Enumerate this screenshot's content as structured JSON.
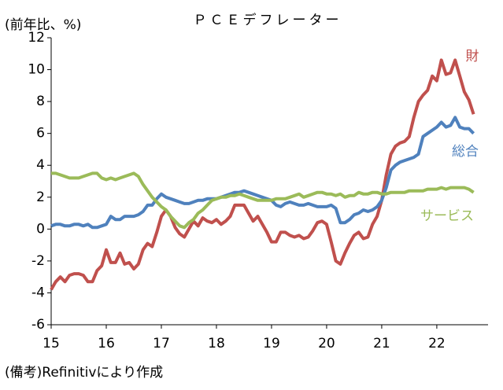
{
  "chart_data": {
    "type": "line",
    "title": "ＰＣＥデフレーター",
    "y_label": "(前年比、%)",
    "note": "(備考)Refinitivにより作成",
    "x": [
      15,
      15.083,
      15.167,
      15.25,
      15.333,
      15.417,
      15.5,
      15.583,
      15.667,
      15.75,
      15.833,
      15.917,
      16,
      16.083,
      16.167,
      16.25,
      16.333,
      16.417,
      16.5,
      16.583,
      16.667,
      16.75,
      16.833,
      16.917,
      17,
      17.083,
      17.167,
      17.25,
      17.333,
      17.417,
      17.5,
      17.583,
      17.667,
      17.75,
      17.833,
      17.917,
      18,
      18.083,
      18.167,
      18.25,
      18.333,
      18.417,
      18.5,
      18.583,
      18.667,
      18.75,
      18.833,
      18.917,
      19,
      19.083,
      19.167,
      19.25,
      19.333,
      19.417,
      19.5,
      19.583,
      19.667,
      19.75,
      19.833,
      19.917,
      20,
      20.083,
      20.167,
      20.25,
      20.333,
      20.417,
      20.5,
      20.583,
      20.667,
      20.75,
      20.833,
      20.917,
      21,
      21.083,
      21.167,
      21.25,
      21.333,
      21.417,
      21.5,
      21.583,
      21.667,
      21.75,
      21.833,
      21.917,
      22,
      22.083,
      22.167,
      22.25,
      22.333,
      22.417,
      22.5,
      22.583,
      22.667
    ],
    "series": [
      {
        "name": "財",
        "color": "#c0504d",
        "values": [
          -3.8,
          -3.3,
          -3.0,
          -3.3,
          -2.9,
          -2.8,
          -2.8,
          -2.9,
          -3.3,
          -3.3,
          -2.6,
          -2.3,
          -1.3,
          -2.1,
          -2.1,
          -1.5,
          -2.2,
          -2.1,
          -2.5,
          -2.2,
          -1.3,
          -0.9,
          -1.1,
          -0.2,
          0.8,
          1.2,
          0.8,
          0.1,
          -0.3,
          -0.5,
          0.0,
          0.5,
          0.2,
          0.7,
          0.5,
          0.4,
          0.6,
          0.3,
          0.5,
          0.8,
          1.5,
          1.5,
          1.5,
          1.0,
          0.5,
          0.8,
          0.3,
          -0.2,
          -0.8,
          -0.8,
          -0.2,
          -0.2,
          -0.4,
          -0.5,
          -0.4,
          -0.6,
          -0.5,
          -0.1,
          0.4,
          0.5,
          0.3,
          -0.8,
          -2.0,
          -2.2,
          -1.5,
          -0.9,
          -0.4,
          -0.2,
          -0.6,
          -0.5,
          0.3,
          0.8,
          1.8,
          3.4,
          4.7,
          5.2,
          5.4,
          5.5,
          5.8,
          7.0,
          8.0,
          8.4,
          8.7,
          9.6,
          9.3,
          10.6,
          9.7,
          9.8,
          10.6,
          9.6,
          8.6,
          8.1,
          7.2
        ]
      },
      {
        "name": "総合",
        "color": "#4f81bd",
        "values": [
          0.2,
          0.3,
          0.3,
          0.2,
          0.2,
          0.3,
          0.3,
          0.2,
          0.3,
          0.1,
          0.1,
          0.2,
          0.3,
          0.8,
          0.6,
          0.6,
          0.8,
          0.8,
          0.8,
          0.9,
          1.1,
          1.5,
          1.5,
          1.9,
          2.2,
          2.0,
          1.9,
          1.8,
          1.7,
          1.6,
          1.6,
          1.7,
          1.8,
          1.8,
          1.9,
          1.9,
          1.9,
          2.0,
          2.1,
          2.2,
          2.3,
          2.3,
          2.4,
          2.3,
          2.2,
          2.1,
          2.0,
          1.9,
          1.8,
          1.5,
          1.4,
          1.6,
          1.7,
          1.6,
          1.5,
          1.5,
          1.6,
          1.5,
          1.4,
          1.4,
          1.4,
          1.5,
          1.3,
          0.4,
          0.4,
          0.6,
          0.9,
          1.0,
          1.2,
          1.1,
          1.2,
          1.4,
          1.8,
          2.6,
          3.7,
          4.0,
          4.2,
          4.3,
          4.4,
          4.5,
          4.7,
          5.8,
          6.0,
          6.2,
          6.4,
          6.7,
          6.4,
          6.5,
          7.0,
          6.4,
          6.3,
          6.3,
          6.0
        ]
      },
      {
        "name": "サービス",
        "color": "#9bbb59",
        "values": [
          3.5,
          3.5,
          3.4,
          3.3,
          3.2,
          3.2,
          3.2,
          3.3,
          3.4,
          3.5,
          3.5,
          3.2,
          3.1,
          3.2,
          3.1,
          3.2,
          3.3,
          3.4,
          3.5,
          3.3,
          2.8,
          2.4,
          2.0,
          1.7,
          1.4,
          1.2,
          0.8,
          0.5,
          0.2,
          0.1,
          0.4,
          0.6,
          1.0,
          1.2,
          1.5,
          1.8,
          1.9,
          2.0,
          2.0,
          2.1,
          2.1,
          2.2,
          2.1,
          2.0,
          1.9,
          1.8,
          1.8,
          1.8,
          1.8,
          1.9,
          1.9,
          1.9,
          2.0,
          2.1,
          2.2,
          2.0,
          2.1,
          2.2,
          2.3,
          2.3,
          2.2,
          2.2,
          2.1,
          2.2,
          2.0,
          2.1,
          2.1,
          2.3,
          2.2,
          2.2,
          2.3,
          2.3,
          2.2,
          2.2,
          2.3,
          2.3,
          2.3,
          2.3,
          2.4,
          2.4,
          2.4,
          2.4,
          2.5,
          2.5,
          2.5,
          2.6,
          2.5,
          2.6,
          2.6,
          2.6,
          2.6,
          2.5,
          2.3
        ]
      }
    ],
    "xlim": [
      15,
      22.93
    ],
    "xticks": [
      15,
      16,
      17,
      18,
      19,
      20,
      21,
      22
    ],
    "ylim": [
      -6,
      12
    ],
    "yticks": [
      -6,
      -4,
      -2,
      0,
      2,
      4,
      6,
      8,
      10,
      12
    ],
    "grid": false
  }
}
